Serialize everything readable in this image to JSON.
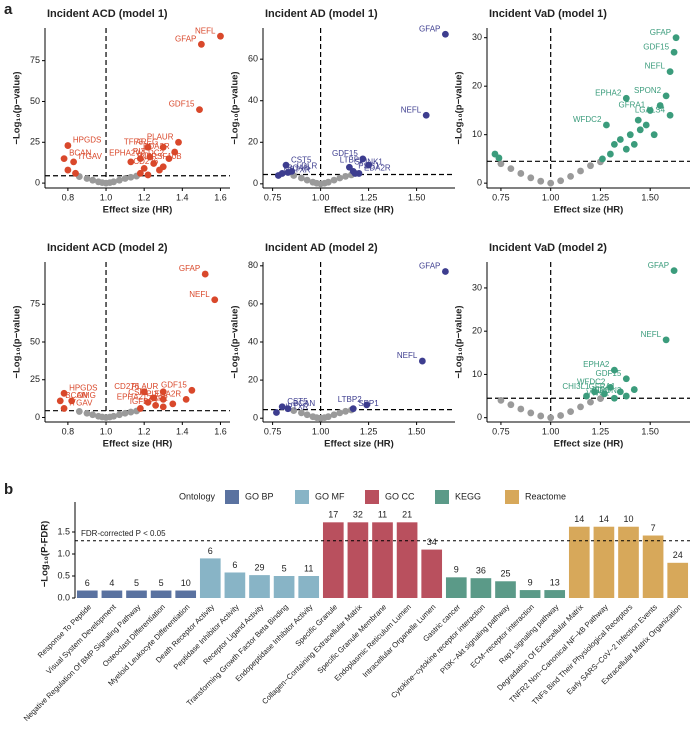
{
  "panels": [
    "a",
    "b"
  ],
  "chart_data": [
    {
      "type": "scatter",
      "title": "Incident ACD (model 1)",
      "x_label": "Effect size (HR)",
      "y_label": "−Log₁₀(p−value)",
      "xlim": [
        0.68,
        1.65
      ],
      "ylim": [
        -3,
        95
      ],
      "xticks": [
        0.8,
        {
          "value": 1,
          "label": "1.0"
        },
        1.2,
        1.4,
        1.6
      ],
      "yticks": [
        0,
        25,
        50,
        75
      ],
      "hline": 4.5,
      "vline": 1,
      "series": [
        {
          "color": "#9a9a9a",
          "x": [
            0.86,
            0.9,
            0.93,
            0.96,
            0.98,
            1.0,
            1.02,
            1.04,
            1.07,
            1.1,
            1.13,
            1.16
          ],
          "values": [
            4,
            2.8,
            1.8,
            0.8,
            0.3,
            0,
            0.3,
            0.8,
            1.8,
            2.8,
            3.6,
            4.3
          ]
        },
        {
          "color": "#d9482b",
          "x": [
            1.6,
            1.5,
            1.49,
            1.38,
            1.3,
            1.22,
            1.36,
            1.33,
            1.3,
            1.23,
            1.18,
            1.13,
            0.8,
            0.78,
            0.83,
            0.8,
            0.84,
            1.18,
            1.2,
            1.25,
            1.28,
            1.22
          ],
          "values": [
            90,
            85,
            45,
            25,
            22,
            22,
            19,
            15,
            10,
            16,
            15,
            13,
            23,
            15,
            13,
            8,
            6,
            6,
            9,
            12,
            8,
            5
          ],
          "labels": [
            "NEFL",
            "GFAP",
            "GDF15",
            "PLAUR",
            "AREG",
            "TFF3",
            "EDA2R",
            "WFDC2",
            "CD276",
            "PI3",
            "EPHA2",
            "TNFRSF10B",
            "HPGDS",
            "BCAN",
            "ITGAV",
            null,
            null,
            null,
            null,
            null,
            null,
            null
          ]
        }
      ]
    },
    {
      "type": "scatter",
      "title": "Incident AD (model 1)",
      "x_label": "Effect size (HR)",
      "y_label": "−Log₁₀(p−value)",
      "xlim": [
        0.7,
        1.7
      ],
      "ylim": [
        -2,
        75
      ],
      "xticks": [
        0.75,
        {
          "value": 1,
          "label": "1.00"
        },
        1.25,
        {
          "value": 1.5,
          "label": "1.50"
        }
      ],
      "yticks": [
        0,
        20,
        40,
        60
      ],
      "hline": 4.5,
      "vline": 1,
      "series": [
        {
          "color": "#9a9a9a",
          "x": [
            0.86,
            0.9,
            0.93,
            0.96,
            0.98,
            1.0,
            1.02,
            1.04,
            1.07,
            1.1,
            1.13,
            1.16
          ],
          "values": [
            4,
            2.8,
            1.8,
            0.8,
            0.3,
            0,
            0.3,
            0.8,
            1.8,
            2.8,
            3.6,
            4.3
          ]
        },
        {
          "color": "#3d3d8f",
          "x": [
            1.65,
            1.55,
            1.22,
            1.15,
            1.17,
            1.25,
            1.2,
            0.82,
            0.85,
            0.8,
            0.78,
            0.83,
            1.18
          ],
          "values": [
            72,
            33,
            12,
            8,
            6,
            9,
            5,
            9,
            6,
            5,
            4,
            5.5,
            5
          ],
          "labels": [
            "GFAP",
            "NEFL",
            "GDF15",
            "SPINK1",
            "PSG1",
            "LTBP2",
            "EDA2R",
            "CST5",
            "LDLR",
            "BCAN",
            "NPTXR",
            null,
            null
          ]
        }
      ]
    },
    {
      "type": "scatter",
      "title": "Incident VaD (model 1)",
      "x_label": "Effect size (HR)",
      "y_label": "−Log₁₀(p−value)",
      "xlim": [
        0.68,
        1.7
      ],
      "ylim": [
        -1,
        32
      ],
      "xticks": [
        0.75,
        {
          "value": 1,
          "label": "1.00"
        },
        1.25,
        {
          "value": 1.5,
          "label": "1.50"
        }
      ],
      "yticks": [
        0,
        10,
        20,
        30
      ],
      "hline": 4.5,
      "vline": 1,
      "series": [
        {
          "color": "#9a9a9a",
          "x": [
            0.75,
            0.8,
            0.85,
            0.9,
            0.95,
            1.0,
            1.05,
            1.1,
            1.15,
            1.2,
            1.25
          ],
          "values": [
            4,
            3,
            2,
            1.1,
            0.4,
            0,
            0.5,
            1.4,
            2.5,
            3.6,
            4.4
          ]
        },
        {
          "color": "#3b9c7c",
          "x": [
            1.63,
            1.62,
            1.6,
            1.38,
            1.58,
            1.5,
            1.6,
            1.28,
            0.72,
            0.74,
            1.26,
            1.3,
            1.32,
            1.35,
            1.4,
            1.42,
            1.45,
            1.48,
            1.38,
            1.44,
            1.52,
            1.55
          ],
          "values": [
            30,
            27,
            23,
            17.5,
            18,
            15,
            14,
            12,
            6,
            5.2,
            5,
            6,
            8,
            9,
            10,
            8,
            11,
            12,
            7,
            13,
            10,
            16
          ],
          "labels": [
            "GFAP",
            "GDF15",
            "NEFL",
            "EPHA2",
            "SPON2",
            "GFRA1",
            "LGALS4",
            "WFDC2",
            null,
            null,
            null,
            null,
            null,
            null,
            null,
            null,
            null,
            null,
            null,
            null,
            null,
            null
          ]
        }
      ]
    },
    {
      "type": "scatter",
      "title": "Incident ACD (model 2)",
      "x_label": "Effect size (HR)",
      "y_label": "−Log₁₀(p−value)",
      "xlim": [
        0.68,
        1.65
      ],
      "ylim": [
        -3,
        103
      ],
      "xticks": [
        0.8,
        {
          "value": 1,
          "label": "1.0"
        },
        1.2,
        1.4,
        1.6
      ],
      "yticks": [
        0,
        25,
        50,
        75
      ],
      "hline": 4.5,
      "vline": 1,
      "series": [
        {
          "color": "#9a9a9a",
          "x": [
            0.86,
            0.9,
            0.93,
            0.96,
            0.98,
            1.0,
            1.02,
            1.04,
            1.07,
            1.1,
            1.13,
            1.16
          ],
          "values": [
            4,
            2.8,
            1.8,
            0.8,
            0.3,
            0,
            0.3,
            0.8,
            1.8,
            2.8,
            3.6,
            4.3
          ]
        },
        {
          "color": "#d9482b",
          "x": [
            1.52,
            1.57,
            1.45,
            1.3,
            1.2,
            1.25,
            1.3,
            1.42,
            1.35,
            1.3,
            1.22,
            0.78,
            0.76,
            0.82,
            0.78,
            1.18,
            1.26
          ],
          "values": [
            95,
            78,
            18,
            17,
            17,
            13,
            12,
            12,
            9,
            7,
            10,
            16,
            11,
            11,
            6,
            6,
            8
          ],
          "labels": [
            "GFAP",
            "NEFL",
            "GDF15",
            "PLAUR",
            "CD276",
            "CSF1",
            "PI3",
            "EDA2R",
            "LTBP2",
            "IGFBP2",
            "EPHA2",
            "HPGDS",
            "BCAN",
            "OMG",
            "ITGAV",
            null,
            null
          ]
        }
      ]
    },
    {
      "type": "scatter",
      "title": "Incident AD (model 2)",
      "x_label": "Effect size (HR)",
      "y_label": "−Log₁₀(p−value)",
      "xlim": [
        0.7,
        1.7
      ],
      "ylim": [
        -2,
        82
      ],
      "xticks": [
        0.75,
        {
          "value": 1,
          "label": "1.00"
        },
        1.25,
        {
          "value": 1.5,
          "label": "1.50"
        }
      ],
      "yticks": [
        0,
        20,
        40,
        60,
        80
      ],
      "hline": 4.5,
      "vline": 1,
      "series": [
        {
          "color": "#9a9a9a",
          "x": [
            0.86,
            0.9,
            0.93,
            0.96,
            0.98,
            1.0,
            1.02,
            1.04,
            1.07,
            1.1,
            1.13,
            1.16
          ],
          "values": [
            4,
            2.8,
            1.8,
            0.8,
            0.3,
            0,
            0.3,
            0.8,
            1.8,
            2.8,
            3.6,
            4.3
          ]
        },
        {
          "color": "#3d3d8f",
          "x": [
            1.65,
            1.53,
            1.24,
            1.17,
            0.8,
            0.83,
            0.77
          ],
          "values": [
            77,
            30,
            7,
            5,
            6,
            5,
            3
          ],
          "labels": [
            "GFAP",
            "NEFL",
            "LTBP2",
            "SPP1",
            "CST5",
            "BCAN",
            "NPTXR"
          ]
        }
      ]
    },
    {
      "type": "scatter",
      "title": "Incident VaD (model 2)",
      "x_label": "Effect size (HR)",
      "y_label": "−Log₁₀(p−value)",
      "xlim": [
        0.68,
        1.7
      ],
      "ylim": [
        -1,
        36
      ],
      "xticks": [
        0.75,
        {
          "value": 1,
          "label": "1.00"
        },
        1.25,
        {
          "value": 1.5,
          "label": "1.50"
        }
      ],
      "yticks": [
        0,
        10,
        20,
        30
      ],
      "hline": 4.5,
      "vline": 1,
      "series": [
        {
          "color": "#9a9a9a",
          "x": [
            0.75,
            0.8,
            0.85,
            0.9,
            0.95,
            1.0,
            1.05,
            1.1,
            1.15,
            1.2,
            1.25
          ],
          "values": [
            4,
            3,
            2,
            1.1,
            0.4,
            0,
            0.5,
            1.4,
            2.5,
            3.6,
            4.4
          ]
        },
        {
          "color": "#3b9c7c",
          "x": [
            1.62,
            1.58,
            1.32,
            1.38,
            1.3,
            1.22,
            1.35,
            1.38,
            1.18,
            1.32,
            1.27,
            1.42
          ],
          "values": [
            34,
            18,
            11,
            9,
            7,
            6,
            6,
            5,
            5,
            4.5,
            5.5,
            6.5
          ],
          "labels": [
            "GFAP",
            "NEFL",
            "EPHA2",
            "GDF15",
            "WFDC2",
            "CHI3L1",
            "GFRA1",
            "SPON2",
            "CD4",
            "VWC2",
            null,
            null
          ]
        }
      ]
    },
    {
      "type": "bar",
      "y_label": "−Log₁₀(P-FDR)",
      "legend_title": "Ontology",
      "ylim": [
        0,
        2
      ],
      "yticks": [
        {
          "value": 0,
          "label": "0.0"
        },
        0.5,
        {
          "value": 1,
          "label": "1.0"
        },
        1.5
      ],
      "threshold": 1.3,
      "threshold_label": "FDR-corrected P < 0.05",
      "categories": [
        "Response To Peptide",
        "Visual System Development",
        "Negative Regulation Of BMP Signaling Pathway",
        "Osteoclast Differentiation",
        "Myeloid Leukocyte Differentiation",
        "Death Receptor Activity",
        "Peptidase Inhibitor Activity",
        "Receptor Ligand Activity",
        "Transforming Growth Factor Beta Binding",
        "Endopeptidase Inhibitor Activity",
        "Specific Granule",
        "Collagen−Containing Extracellular Matrix",
        "Specific Granule Membrane",
        "Endoplasmic Reticulum Lumen",
        "Intracellular Organelle Lumen",
        "Gastric cancer",
        "Cytokine−cytokine receptor interaction",
        "PI3K−Akt signaling pathway",
        "ECM−receptor interaction",
        "Rap1 signaling pathway",
        "Degradation Of Extracellular Matrix",
        "TNFR2 Non−Canonical NF−kB Pathway",
        "TNFs Bind Their Physiological Receptors",
        "Early SARS−CoV−2 Infection Events",
        "Extracellular Matrix Organization"
      ],
      "series": [
        {
          "name": "GO BP",
          "color": "#5a72a0",
          "values": [
            0.17,
            0.17,
            0.17,
            0.17,
            0.17,
            null,
            null,
            null,
            null,
            null,
            null,
            null,
            null,
            null,
            null,
            null,
            null,
            null,
            null,
            null,
            null,
            null,
            null,
            null,
            null
          ],
          "counts": [
            6,
            4,
            5,
            5,
            10,
            null,
            null,
            null,
            null,
            null,
            null,
            null,
            null,
            null,
            null,
            null,
            null,
            null,
            null,
            null,
            null,
            null,
            null,
            null,
            null
          ]
        },
        {
          "name": "GO MF",
          "color": "#88b4c6",
          "values": [
            null,
            null,
            null,
            null,
            null,
            0.9,
            0.58,
            0.52,
            0.5,
            0.5,
            null,
            null,
            null,
            null,
            null,
            null,
            null,
            null,
            null,
            null,
            null,
            null,
            null,
            null,
            null
          ],
          "counts": [
            null,
            null,
            null,
            null,
            null,
            6,
            6,
            29,
            5,
            11,
            null,
            null,
            null,
            null,
            null,
            null,
            null,
            null,
            null,
            null,
            null,
            null,
            null,
            null,
            null
          ]
        },
        {
          "name": "GO CC",
          "color": "#b9505e",
          "values": [
            null,
            null,
            null,
            null,
            null,
            null,
            null,
            null,
            null,
            null,
            1.72,
            1.72,
            1.72,
            1.72,
            1.1,
            null,
            null,
            null,
            null,
            null,
            null,
            null,
            null,
            null,
            null
          ],
          "counts": [
            null,
            null,
            null,
            null,
            null,
            null,
            null,
            null,
            null,
            null,
            17,
            32,
            11,
            21,
            34,
            null,
            null,
            null,
            null,
            null,
            null,
            null,
            null,
            null,
            null
          ]
        },
        {
          "name": "KEGG",
          "color": "#5b9a88",
          "values": [
            null,
            null,
            null,
            null,
            null,
            null,
            null,
            null,
            null,
            null,
            null,
            null,
            null,
            null,
            null,
            0.47,
            0.45,
            0.38,
            0.18,
            0.18,
            null,
            null,
            null,
            null,
            null
          ],
          "counts": [
            null,
            null,
            null,
            null,
            null,
            null,
            null,
            null,
            null,
            null,
            null,
            null,
            null,
            null,
            null,
            9,
            36,
            25,
            9,
            13,
            null,
            null,
            null,
            null,
            null
          ]
        },
        {
          "name": "Reactome",
          "color": "#d7a85a",
          "values": [
            null,
            null,
            null,
            null,
            null,
            null,
            null,
            null,
            null,
            null,
            null,
            null,
            null,
            null,
            null,
            null,
            null,
            null,
            null,
            null,
            1.62,
            1.62,
            1.62,
            1.42,
            0.8
          ],
          "counts": [
            null,
            null,
            null,
            null,
            null,
            null,
            null,
            null,
            null,
            null,
            null,
            null,
            null,
            null,
            null,
            null,
            null,
            null,
            null,
            null,
            14,
            14,
            10,
            7,
            24
          ]
        }
      ]
    }
  ]
}
